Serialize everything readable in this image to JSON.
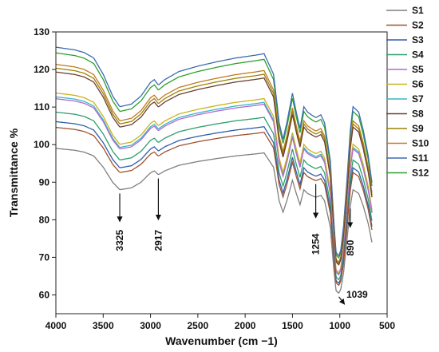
{
  "chart_data": {
    "type": "line",
    "title": "",
    "xlabel": "Wavenumber (cm −1)",
    "ylabel": "Transmittance %",
    "xlim": [
      4000,
      500
    ],
    "x_reversed": true,
    "ylim": [
      55,
      130
    ],
    "xticks": [
      4000,
      3500,
      3000,
      2500,
      2000,
      1500,
      1000,
      500
    ],
    "yticks": [
      60,
      70,
      80,
      90,
      100,
      110,
      120,
      130
    ],
    "grid": false,
    "legend_position": "right",
    "colors": {
      "S1": "#7f7f7f",
      "S2": "#a0522d",
      "S3": "#2e5ea8",
      "S4": "#2e9e6b",
      "S5": "#b06ad3",
      "S6": "#c9b21a",
      "S7": "#35b6c6",
      "S8": "#6b3f33",
      "S9": "#9a8200",
      "S10": "#c07a22",
      "S11": "#3c6bb0",
      "S12": "#2ca02c"
    },
    "base_spectrum_S1": {
      "x": [
        4000,
        3800,
        3700,
        3600,
        3500,
        3400,
        3325,
        3200,
        3100,
        3000,
        2960,
        2917,
        2850,
        2700,
        2500,
        2300,
        2100,
        1900,
        1800,
        1700,
        1640,
        1600,
        1560,
        1500,
        1460,
        1420,
        1380,
        1340,
        1300,
        1254,
        1200,
        1160,
        1100,
        1060,
        1039,
        1010,
        990,
        960,
        930,
        890,
        860,
        800,
        750,
        700,
        660
      ],
      "y": [
        99,
        98.5,
        98,
        97,
        94,
        90,
        88,
        88.5,
        90,
        92.5,
        93,
        92,
        93,
        94.5,
        95.5,
        96.3,
        97,
        97.5,
        97.8,
        94,
        85,
        82,
        85,
        90.5,
        87,
        84,
        88,
        87,
        86.5,
        86,
        86.5,
        85,
        78,
        66,
        61,
        60.5,
        61.5,
        66,
        73,
        83.5,
        88,
        87,
        83.5,
        79,
        74
      ]
    },
    "series": [
      {
        "name": "S1",
        "offset": 0
      },
      {
        "name": "S2",
        "offset": 5.5
      },
      {
        "name": "S3",
        "offset": 7
      },
      {
        "name": "S4",
        "offset": 9.5
      },
      {
        "name": "S5",
        "offset": 13
      },
      {
        "name": "S6",
        "offset": 14.5
      },
      {
        "name": "S7",
        "offset": 13.5
      },
      {
        "name": "S8",
        "offset": 20
      },
      {
        "name": "S9",
        "offset": 21
      },
      {
        "name": "S10",
        "offset": 22
      },
      {
        "name": "S11",
        "offset": 26.5
      },
      {
        "name": "S12",
        "offset": 25
      }
    ],
    "annotations": [
      {
        "label": "3325",
        "x": 3325
      },
      {
        "label": "2917",
        "x": 2917
      },
      {
        "label": "1254",
        "x": 1254
      },
      {
        "label": "890",
        "x": 890
      },
      {
        "label": "1039",
        "x": 1039
      }
    ]
  }
}
